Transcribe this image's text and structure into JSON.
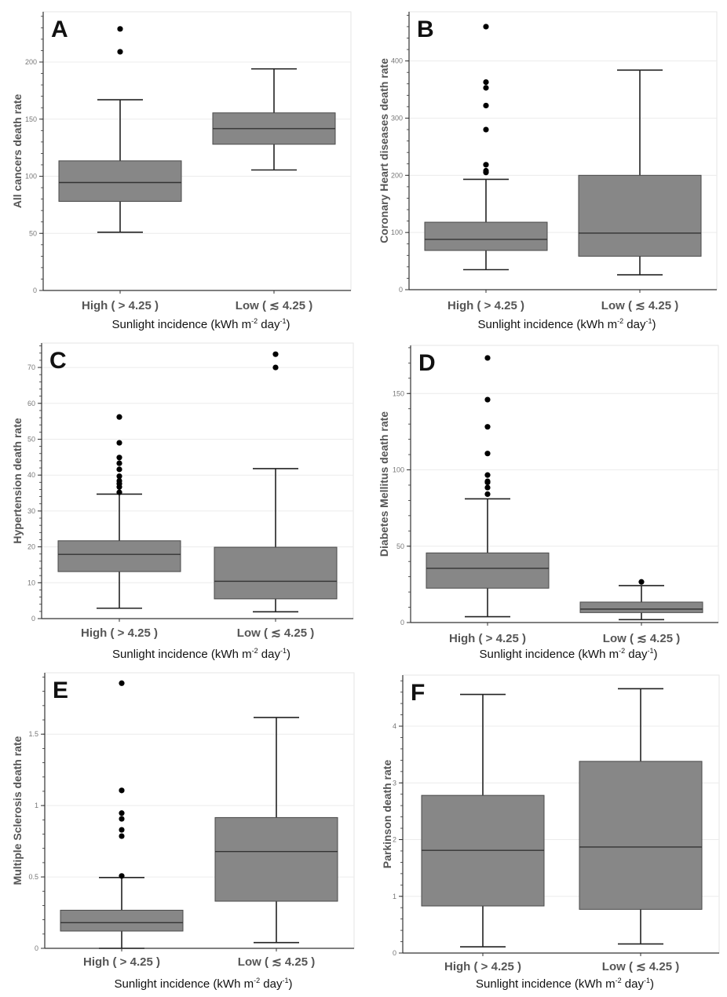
{
  "chart_data": [
    {
      "type": "boxplot",
      "panel": "A",
      "ylabel": "All cancers death rate",
      "xlabel": "Sunlight incidence (kWh m",
      "xlabel_sup1": "-2",
      "xlabel_mid": " day",
      "xlabel_sup2": "-1",
      "xlabel_end": ")",
      "categories": [
        "High ( > 4.25 )",
        "Low ( ≲ 4.25 )"
      ],
      "yticks": [
        0,
        50,
        100,
        150,
        200
      ],
      "ylim": [
        0,
        244
      ],
      "minor_step": 10,
      "grid": true,
      "boxes": [
        {
          "whisker_low": 51,
          "q1": 78,
          "median": 94.5,
          "q3": 113.5,
          "whisker_high": 167,
          "outliers": [
            209,
            229
          ]
        },
        {
          "whisker_low": 105.5,
          "q1": 128,
          "median": 141.7,
          "q3": 155.5,
          "whisker_high": 194,
          "outliers": []
        }
      ]
    },
    {
      "type": "boxplot",
      "panel": "B",
      "ylabel": "Coronary Heart diseases death rate",
      "xlabel": "Sunlight incidence (kWh m",
      "xlabel_sup1": "-2",
      "xlabel_mid": " day",
      "xlabel_sup2": "-1",
      "xlabel_end": ")",
      "categories": [
        "High ( > 4.25 )",
        "Low ( ≲ 4.25 )"
      ],
      "yticks": [
        0,
        100,
        200,
        300,
        400
      ],
      "ylim": [
        0,
        486
      ],
      "minor_step": 20,
      "grid": true,
      "boxes": [
        {
          "whisker_low": 35,
          "q1": 68.6,
          "median": 88,
          "q3": 118,
          "whisker_high": 193,
          "outliers": [
            205,
            208,
            218.5,
            280,
            322,
            353,
            363,
            460
          ]
        },
        {
          "whisker_low": 26,
          "q1": 58.5,
          "median": 99,
          "q3": 200,
          "whisker_high": 384,
          "outliers": []
        }
      ]
    },
    {
      "type": "boxplot",
      "panel": "C",
      "ylabel": "Hypertension death rate",
      "xlabel": "Sunlight incidence (kWh m",
      "xlabel_sup1": "-2",
      "xlabel_mid": " day",
      "xlabel_sup2": "-1",
      "xlabel_end": ")",
      "categories": [
        "High ( > 4.25 )",
        "Low ( ≲ 4.25 )"
      ],
      "yticks": [
        0,
        10,
        20,
        30,
        40,
        50,
        60,
        70
      ],
      "ylim": [
        0,
        76.8
      ],
      "minor_step": 2,
      "grid": true,
      "boxes": [
        {
          "whisker_low": 2.9,
          "q1": 13.1,
          "median": 17.9,
          "q3": 21.7,
          "whisker_high": 34.7,
          "outliers": [
            35.2,
            36.7,
            37.6,
            38.4,
            39.7,
            41.6,
            43.3,
            44.9,
            49,
            56.2
          ]
        },
        {
          "whisker_low": 1.9,
          "q1": 5.5,
          "median": 10.4,
          "q3": 19.9,
          "whisker_high": 41.8,
          "outliers": [
            70,
            73.7
          ]
        }
      ]
    },
    {
      "type": "boxplot",
      "panel": "D",
      "ylabel": "Diabetes Mellitus death rate",
      "xlabel": "Sunlight incidence (kWh m",
      "xlabel_sup1": "-2",
      "xlabel_mid": " day",
      "xlabel_sup2": "-1",
      "xlabel_end": ")",
      "categories": [
        "High ( > 4.25 )",
        "Low ( ≲ 4.25 )"
      ],
      "yticks": [
        0,
        50,
        100,
        150
      ],
      "ylim": [
        0,
        181.5
      ],
      "minor_step": 10,
      "grid": true,
      "boxes": [
        {
          "whisker_low": 3.8,
          "q1": 22.5,
          "median": 35.5,
          "q3": 45.6,
          "whisker_high": 81,
          "outliers": [
            84.1,
            88.4,
            91.8,
            92.5,
            96.6,
            110.7,
            128.2,
            146,
            173.3
          ]
        },
        {
          "whisker_low": 1.9,
          "q1": 6.5,
          "median": 8.8,
          "q3": 13.4,
          "whisker_high": 24.2,
          "outliers": [
            26.6
          ]
        }
      ]
    },
    {
      "type": "boxplot",
      "panel": "E",
      "ylabel": "Multiple Sclerosis death rate",
      "xlabel": "Sunlight incidence (kWh m",
      "xlabel_sup1": "-2",
      "xlabel_mid": " day",
      "xlabel_sup2": "-1",
      "xlabel_end": ")",
      "categories": [
        "High ( > 4.25 )",
        "Low ( ≲ 4.25 )"
      ],
      "yticks": [
        0,
        0.5,
        1,
        1.5
      ],
      "ytick_labels": [
        "0",
        "0.5",
        "1",
        "1.5"
      ],
      "ylim": [
        0,
        1.93
      ],
      "minor_step": 0.1,
      "grid": true,
      "boxes": [
        {
          "whisker_low": 0,
          "q1": 0.121,
          "median": 0.18,
          "q3": 0.267,
          "whisker_high": 0.496,
          "outliers": [
            0.507,
            0.786,
            0.83,
            0.907,
            0.947,
            1.106,
            1.857
          ]
        },
        {
          "whisker_low": 0.04,
          "q1": 0.33,
          "median": 0.678,
          "q3": 0.916,
          "whisker_high": 1.617,
          "outliers": []
        }
      ]
    },
    {
      "type": "boxplot",
      "panel": "F",
      "ylabel": "Parkinson death rate",
      "xlabel": "Sunlight incidence (kWh m",
      "xlabel_sup1": "-2",
      "xlabel_mid": " day",
      "xlabel_sup2": "-1",
      "xlabel_end": ")",
      "categories": [
        "High ( > 4.25 )",
        "Low ( ≲ 4.25 )"
      ],
      "yticks": [
        0,
        1,
        2,
        3,
        4
      ],
      "ylim": [
        0,
        4.9
      ],
      "minor_step": 0.2,
      "grid": true,
      "boxes": [
        {
          "whisker_low": 0.11,
          "q1": 0.83,
          "median": 1.81,
          "q3": 2.78,
          "whisker_high": 4.56,
          "outliers": []
        },
        {
          "whisker_low": 0.16,
          "q1": 0.77,
          "median": 1.87,
          "q3": 3.38,
          "whisker_high": 4.66,
          "outliers": []
        }
      ]
    }
  ],
  "colors": {
    "box_fill": "#878787",
    "box_stroke": "#4a4a4a",
    "whisker": "#222222",
    "outlier": "#000000",
    "grid": "#ececec",
    "axis": "#333333"
  }
}
